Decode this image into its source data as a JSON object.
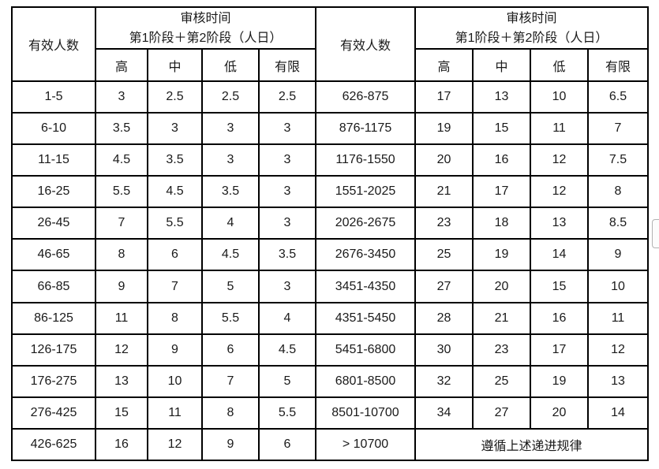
{
  "table": {
    "border_color": "#000000",
    "text_color": "#1a1a1a",
    "header": {
      "effective_label": "有效人数",
      "audit_title_line1": "审核时间",
      "audit_title_line2": "第1阶段＋第2阶段（人日）",
      "levels": [
        "高",
        "中",
        "低",
        "有限"
      ]
    },
    "left_rows": [
      {
        "range": "1-5",
        "values": [
          "3",
          "2.5",
          "2.5",
          "2.5"
        ]
      },
      {
        "range": "6-10",
        "values": [
          "3.5",
          "3",
          "3",
          "3"
        ]
      },
      {
        "range": "11-15",
        "values": [
          "4.5",
          "3.5",
          "3",
          "3"
        ]
      },
      {
        "range": "16-25",
        "values": [
          "5.5",
          "4.5",
          "3.5",
          "3"
        ]
      },
      {
        "range": "26-45",
        "values": [
          "7",
          "5.5",
          "4",
          "3"
        ]
      },
      {
        "range": "46-65",
        "values": [
          "8",
          "6",
          "4.5",
          "3.5"
        ]
      },
      {
        "range": "66-85",
        "values": [
          "9",
          "7",
          "5",
          "3"
        ]
      },
      {
        "range": "86-125",
        "values": [
          "11",
          "8",
          "5.5",
          "4"
        ]
      },
      {
        "range": "126-175",
        "values": [
          "12",
          "9",
          "6",
          "4.5"
        ]
      },
      {
        "range": "176-275",
        "values": [
          "13",
          "10",
          "7",
          "5"
        ]
      },
      {
        "range": "276-425",
        "values": [
          "15",
          "11",
          "8",
          "5.5"
        ]
      },
      {
        "range": "426-625",
        "values": [
          "16",
          "12",
          "9",
          "6"
        ]
      }
    ],
    "right_rows": [
      {
        "range": "626-875",
        "values": [
          "17",
          "13",
          "10",
          "6.5"
        ]
      },
      {
        "range": "876-1175",
        "values": [
          "19",
          "15",
          "11",
          "7"
        ]
      },
      {
        "range": "1176-1550",
        "values": [
          "20",
          "16",
          "12",
          "7.5"
        ]
      },
      {
        "range": "1551-2025",
        "values": [
          "21",
          "17",
          "12",
          "8"
        ]
      },
      {
        "range": "2026-2675",
        "values": [
          "23",
          "18",
          "13",
          "8.5"
        ]
      },
      {
        "range": "2676-3450",
        "values": [
          "25",
          "19",
          "14",
          "9"
        ]
      },
      {
        "range": "3451-4350",
        "values": [
          "27",
          "20",
          "15",
          "10"
        ]
      },
      {
        "range": "4351-5450",
        "values": [
          "28",
          "21",
          "16",
          "11"
        ]
      },
      {
        "range": "5451-6800",
        "values": [
          "30",
          "23",
          "17",
          "12"
        ]
      },
      {
        "range": "6801-8500",
        "values": [
          "32",
          "25",
          "19",
          "13"
        ]
      },
      {
        "range": "8501-10700",
        "values": [
          "34",
          "27",
          "20",
          "14"
        ]
      }
    ],
    "right_last_row": {
      "range": "> 10700",
      "note": "遵循上述递进规律"
    }
  },
  "scrollbar": {
    "thumb_border_color": "#b3b3b3"
  }
}
